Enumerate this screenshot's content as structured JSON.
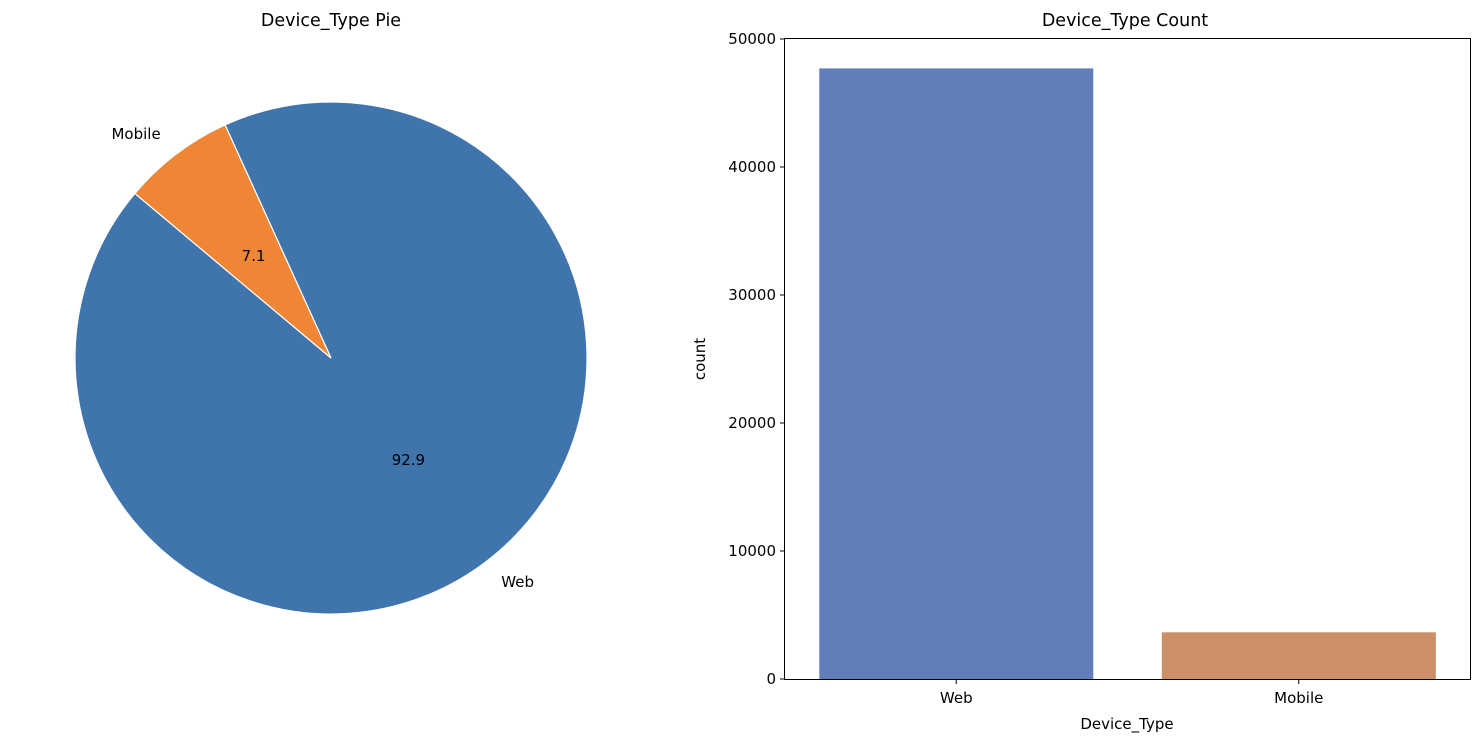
{
  "chart_data": [
    {
      "type": "pie",
      "title": "Device_Type Pie",
      "slices": [
        {
          "label": "Web",
          "value": 92.9,
          "pct_label": "92.9",
          "color": "#3f74ad"
        },
        {
          "label": "Mobile",
          "value": 7.1,
          "pct_label": "7.1",
          "color": "#ef8636"
        }
      ],
      "wedge_edge_color": "#ffffff"
    },
    {
      "type": "bar",
      "title": "Device_Type Count",
      "xlabel": "Device_Type",
      "ylabel": "count",
      "categories": [
        "Web",
        "Mobile"
      ],
      "values": [
        47700,
        3650
      ],
      "colors": [
        "#617dba",
        "#cd8f67"
      ],
      "ylim": [
        0,
        50000
      ],
      "yticks": [
        0,
        10000,
        20000,
        30000,
        40000,
        50000
      ],
      "ytick_labels": [
        "0",
        "10000",
        "20000",
        "30000",
        "40000",
        "50000"
      ],
      "grid": false
    }
  ]
}
